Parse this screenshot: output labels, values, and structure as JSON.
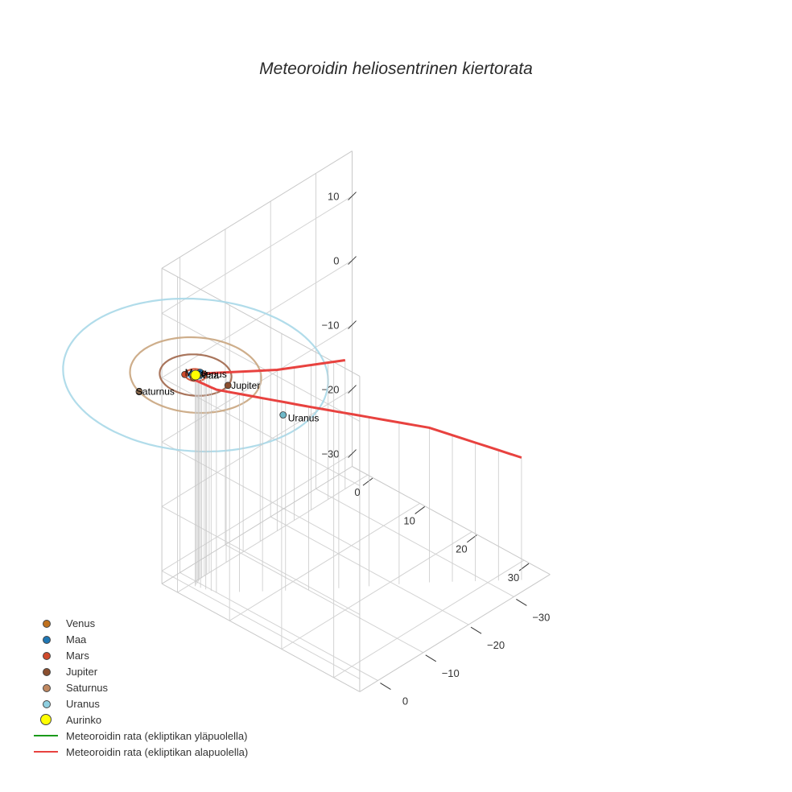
{
  "title": "Meteoroidin heliosentrinen kiertorata",
  "chart_data": {
    "type": "scatter3d",
    "title": "Meteoroidin heliosentrinen kiertorata",
    "axes": {
      "x": {
        "ticks": [
          0,
          10,
          20,
          30
        ],
        "range": [
          -3,
          35
        ]
      },
      "y": {
        "ticks": [
          -30,
          -20,
          -10,
          0
        ],
        "range": [
          -38,
          4
        ]
      },
      "z": {
        "ticks": [
          -30,
          -20,
          -10,
          0,
          10
        ],
        "range": [
          -32,
          17
        ]
      }
    },
    "bodies": [
      {
        "name": "Venus",
        "x": 0.2,
        "y": 0.7,
        "z": 0,
        "color": "#c0711e"
      },
      {
        "name": "Maa",
        "x": 0.0,
        "y": -1.0,
        "z": 0,
        "color": "#1f77b4"
      },
      {
        "name": "Mars",
        "x": -1.2,
        "y": 1.0,
        "z": 0,
        "color": "#d04a2c"
      },
      {
        "name": "Jupiter",
        "x": 5.0,
        "y": -1.4,
        "z": 0,
        "color": "#8b4f2f"
      },
      {
        "name": "Saturnus",
        "x": -3.0,
        "y": 9.0,
        "z": 0,
        "color": "#8b6a4e"
      },
      {
        "name": "Uranus",
        "x": 15.5,
        "y": -1.5,
        "z": 0,
        "color": "#6fb8c8"
      },
      {
        "name": "Aurinko",
        "x": 0,
        "y": 0,
        "z": 0,
        "color": "#ffff00"
      }
    ],
    "orbits": [
      {
        "name": "Venus",
        "radius": 0.72,
        "color": "#c0711e"
      },
      {
        "name": "Maa",
        "radius": 1.0,
        "color": "#1f77b4"
      },
      {
        "name": "Mars",
        "radius": 1.52,
        "color": "#d04a2c"
      },
      {
        "name": "Jupiter",
        "radius": 5.2,
        "color": "#a0664a"
      },
      {
        "name": "Saturnus",
        "radius": 9.5,
        "color": "#c9a57e"
      },
      {
        "name": "Uranus",
        "radius": 19.2,
        "color": "#a8d8e8"
      }
    ],
    "trajectory": {
      "name": "Meteoroidin rata (ekliptikan alapuolella)",
      "color": "#e8423f",
      "points": [
        {
          "x": 0,
          "y": -33,
          "z": -12
        },
        {
          "x": 0,
          "y": -18,
          "z": -7
        },
        {
          "x": 0,
          "y": -3,
          "z": -1
        },
        {
          "x": 0.2,
          "y": -0.6,
          "z": 0
        },
        {
          "x": 0.8,
          "y": 1.0,
          "z": 0
        },
        {
          "x": 4,
          "y": 0,
          "z": -0.5
        },
        {
          "x": 13,
          "y": -10,
          "z": -3.5
        },
        {
          "x": 24,
          "y": -24,
          "z": -8
        },
        {
          "x": 33,
          "y": -34,
          "z": -13
        }
      ]
    },
    "legend": [
      {
        "label": "Venus",
        "kind": "marker",
        "color": "#c0711e"
      },
      {
        "label": "Maa",
        "kind": "marker",
        "color": "#1f77b4"
      },
      {
        "label": "Mars",
        "kind": "marker",
        "color": "#d04a2c"
      },
      {
        "label": "Jupiter",
        "kind": "marker",
        "color": "#8b4f2f"
      },
      {
        "label": "Saturnus",
        "kind": "marker",
        "color": "#c08860"
      },
      {
        "label": "Uranus",
        "kind": "marker",
        "color": "#8fcfe0"
      },
      {
        "label": "Aurinko",
        "kind": "big-marker",
        "color": "#ffff00"
      },
      {
        "label": "Meteoroidin rata (ekliptikan yläpuolella)",
        "kind": "line",
        "color": "#1a9a1a"
      },
      {
        "label": "Meteoroidin rata (ekliptikan alapuolella)",
        "kind": "line",
        "color": "#e8423f"
      }
    ]
  }
}
